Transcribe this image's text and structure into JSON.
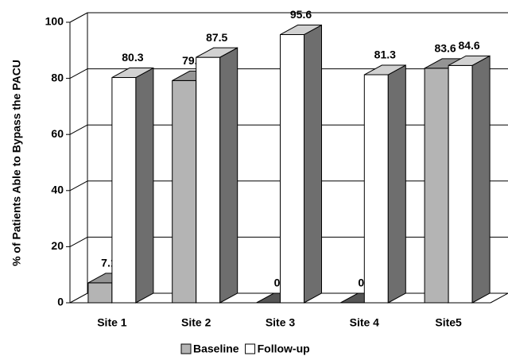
{
  "chart_data": {
    "type": "bar3d",
    "y_label": "% of Patients Able to Bypass the PACU",
    "categories": [
      "Site 1",
      "Site 2",
      "Site 3",
      "Site 4",
      "Site5"
    ],
    "series": [
      {
        "name": "Baseline",
        "color": "#b4b4b4",
        "values": [
          7.1,
          79.2,
          0,
          0,
          83.6
        ]
      },
      {
        "name": "Follow-up",
        "color": "#ffffff",
        "values": [
          80.3,
          87.5,
          95.6,
          81.3,
          84.6
        ]
      }
    ],
    "ylim": [
      0,
      100
    ],
    "yticks": [
      0,
      20,
      40,
      60,
      80,
      100
    ],
    "grid": true,
    "legend": "bottom"
  }
}
